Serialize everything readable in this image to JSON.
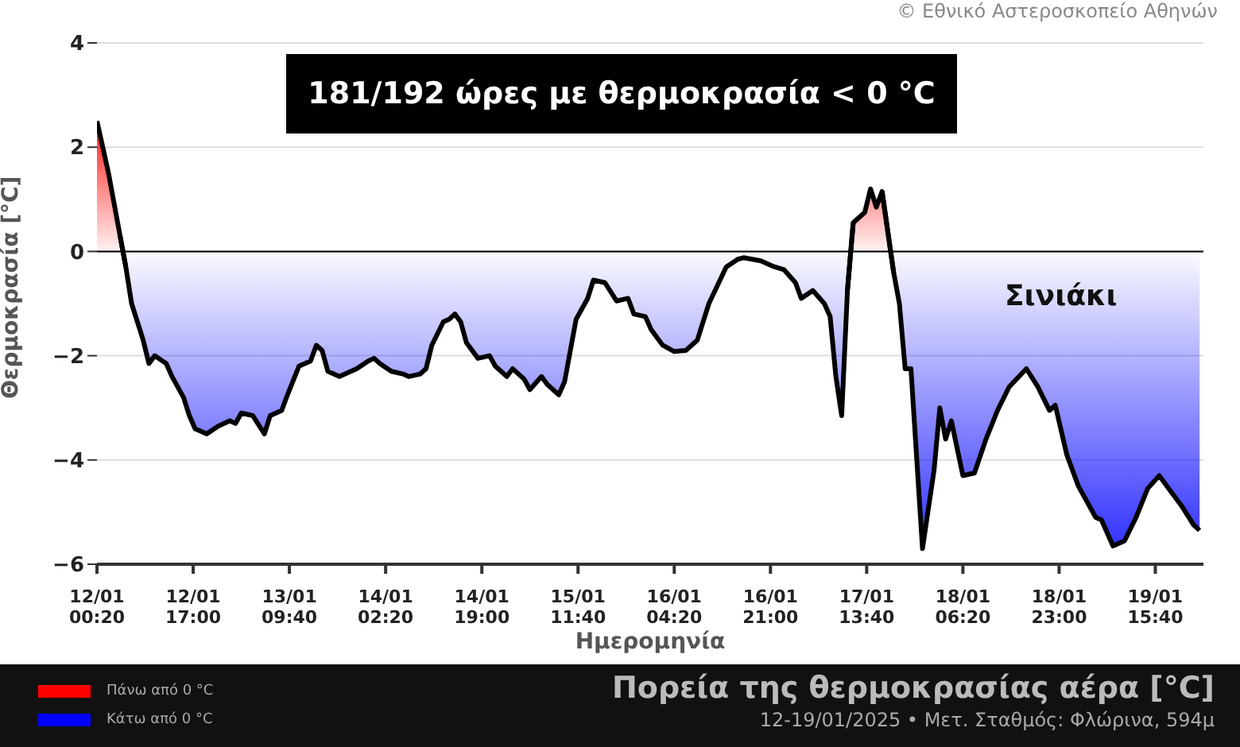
{
  "chart_data": {
    "type": "area",
    "title": "Πορεία της θερμοκρασίας αέρα [°C]",
    "subtitle": "12-19/01/2025 • Μετ. Σταθμός: Φλώρινα, 594μ",
    "xlabel": "Ημερομηνία",
    "ylabel": "Θερμοκρασία [°C]",
    "annotations": [
      "181/192 ώρες με θερμοκρασία < 0 °C",
      "Σινιάκι",
      "© Εθνικό Αστεροσκοπείο Αθηνών"
    ],
    "x": [
      "2025-01-12T00:20",
      "2025-01-12T02:20",
      "2025-01-12T04:20",
      "2025-01-12T05:20",
      "2025-01-12T06:20",
      "2025-01-12T08:20",
      "2025-01-12T09:20",
      "2025-01-12T10:20",
      "2025-01-12T12:20",
      "2025-01-12T13:20",
      "2025-01-12T15:20",
      "2025-01-12T16:20",
      "2025-01-12T17:20",
      "2025-01-12T19:20",
      "2025-01-12T21:20",
      "2025-01-12T23:20",
      "2025-01-13T00:20",
      "2025-01-13T01:20",
      "2025-01-13T03:20",
      "2025-01-13T05:20",
      "2025-01-13T06:20",
      "2025-01-13T08:20",
      "2025-01-13T09:20",
      "2025-01-13T11:20",
      "2025-01-13T13:20",
      "2025-01-13T14:20",
      "2025-01-13T15:20",
      "2025-01-13T16:20",
      "2025-01-13T18:20",
      "2025-01-13T21:20",
      "2025-01-13T23:20",
      "2025-01-14T00:20",
      "2025-01-14T01:20",
      "2025-01-14T03:20",
      "2025-01-14T05:20",
      "2025-01-14T06:20",
      "2025-01-14T08:20",
      "2025-01-14T09:20",
      "2025-01-14T10:20",
      "2025-01-14T12:20",
      "2025-01-14T13:20",
      "2025-01-14T14:20",
      "2025-01-14T15:20",
      "2025-01-14T16:20",
      "2025-01-14T18:20",
      "2025-01-14T20:20",
      "2025-01-14T21:20",
      "2025-01-14T23:20",
      "2025-01-15T00:20",
      "2025-01-15T02:20",
      "2025-01-15T03:20",
      "2025-01-15T05:20",
      "2025-01-15T06:20",
      "2025-01-15T08:20",
      "2025-01-15T09:20",
      "2025-01-15T10:20",
      "2025-01-15T11:20",
      "2025-01-15T13:20",
      "2025-01-15T14:20",
      "2025-01-15T16:20",
      "2025-01-15T18:20",
      "2025-01-15T20:20",
      "2025-01-15T21:20",
      "2025-01-15T23:20",
      "2025-01-16T00:20",
      "2025-01-16T02:20",
      "2025-01-16T04:20",
      "2025-01-16T06:20",
      "2025-01-16T08:20",
      "2025-01-16T10:20",
      "2025-01-16T13:20",
      "2025-01-16T15:20",
      "2025-01-16T16:20",
      "2025-01-16T19:20",
      "2025-01-16T21:20",
      "2025-01-16T23:20",
      "2025-01-17T01:20",
      "2025-01-17T02:20",
      "2025-01-17T04:20",
      "2025-01-17T06:20",
      "2025-01-17T07:20",
      "2025-01-17T08:20",
      "2025-01-17T09:20",
      "2025-01-17T10:20",
      "2025-01-17T11:20",
      "2025-01-17T13:20",
      "2025-01-17T14:20",
      "2025-01-17T15:20",
      "2025-01-17T16:20",
      "2025-01-17T18:20",
      "2025-01-17T19:20",
      "2025-01-17T20:20",
      "2025-01-17T21:20",
      "2025-01-17T23:20",
      "2025-01-18T01:20",
      "2025-01-18T02:20",
      "2025-01-18T03:20",
      "2025-01-18T04:20",
      "2025-01-18T06:20",
      "2025-01-18T08:20",
      "2025-01-18T10:20",
      "2025-01-18T12:20",
      "2025-01-18T14:20",
      "2025-01-18T17:20",
      "2025-01-18T19:20",
      "2025-01-18T21:20",
      "2025-01-18T22:20",
      "2025-01-19T00:20",
      "2025-01-19T02:20",
      "2025-01-19T05:20",
      "2025-01-19T06:20",
      "2025-01-19T08:20",
      "2025-01-19T10:20",
      "2025-01-19T12:20",
      "2025-01-19T14:20",
      "2025-01-19T16:20",
      "2025-01-19T18:20",
      "2025-01-19T20:20",
      "2025-01-19T22:20",
      "2025-01-19T23:20"
    ],
    "series": [
      {
        "name": "Πάνω από 0 °C",
        "color": "#ff0000",
        "values": [
          2.5,
          1.5,
          0.3,
          -0.3,
          null,
          null,
          null,
          null,
          null,
          null,
          null,
          null,
          null,
          null,
          null,
          null,
          null,
          null,
          null,
          null,
          null,
          null,
          null,
          null,
          null,
          null,
          null,
          null,
          null,
          null,
          null,
          null,
          null,
          null,
          null,
          null,
          null,
          null,
          null,
          null,
          null,
          null,
          null,
          null,
          null,
          null,
          null,
          null,
          null,
          null,
          null,
          null,
          null,
          null,
          null,
          null,
          null,
          null,
          null,
          null,
          null,
          null,
          null,
          null,
          null,
          null,
          null,
          null,
          null,
          null,
          null,
          null,
          null,
          null,
          null,
          null,
          null,
          null,
          null,
          null,
          null,
          null,
          null,
          -0.75,
          0.55,
          0.75,
          1.2,
          0.85,
          1.15,
          -0.4,
          null,
          null,
          null,
          null,
          null,
          null,
          null,
          null,
          null,
          null,
          null,
          null,
          null,
          null,
          null,
          null,
          null,
          null,
          null,
          null,
          null,
          null,
          null,
          null,
          null,
          null,
          null,
          null,
          null,
          null
        ]
      },
      {
        "name": "Κάτω από 0 °C",
        "color": "#0000ff",
        "values": [
          null,
          null,
          0.3,
          -0.3,
          -1.0,
          -1.7,
          -2.15,
          -2.0,
          -2.15,
          -2.4,
          -2.8,
          -3.15,
          -3.4,
          -3.5,
          -3.35,
          -3.25,
          -3.3,
          -3.1,
          -3.15,
          -3.5,
          -3.15,
          -3.05,
          -2.75,
          -2.2,
          -2.1,
          -1.8,
          -1.9,
          -2.3,
          -2.4,
          -2.25,
          -2.1,
          -2.05,
          -2.15,
          -2.3,
          -2.35,
          -2.4,
          -2.35,
          -2.25,
          -1.8,
          -1.35,
          -1.3,
          -1.2,
          -1.35,
          -1.75,
          -2.05,
          -2.0,
          -2.2,
          -2.4,
          -2.25,
          -2.45,
          -2.65,
          -2.4,
          -2.55,
          -2.75,
          -2.5,
          -1.9,
          -1.3,
          -0.9,
          -0.55,
          -0.6,
          -0.95,
          -0.9,
          -1.2,
          -1.25,
          -1.5,
          -1.8,
          -1.92,
          -1.9,
          -1.7,
          -1.0,
          -0.3,
          -0.15,
          -0.12,
          -0.18,
          -0.28,
          -0.35,
          -0.6,
          -0.9,
          -0.75,
          -1.0,
          -1.25,
          -2.4,
          -3.15,
          -0.75,
          0.55,
          null,
          null,
          null,
          1.15,
          -0.4,
          -1.0,
          -2.25,
          -2.25,
          -5.7,
          -4.2,
          -3.0,
          -3.6,
          -3.25,
          -4.3,
          -4.25,
          -3.6,
          -3.05,
          -2.6,
          -2.25,
          -2.6,
          -3.05,
          -2.95,
          -3.9,
          -4.5,
          -5.1,
          -5.15,
          -5.65,
          -5.55,
          -5.1,
          -4.55,
          -4.3,
          -4.6,
          -4.9,
          -5.25,
          -5.35
        ]
      }
    ],
    "xlim": [
      "2025-01-12T00:20",
      "2025-01-20T00:00"
    ],
    "xticks": [
      {
        "value": "2025-01-12T00:20",
        "label": "12/01\n00:20"
      },
      {
        "value": "2025-01-12T17:00",
        "label": "12/01\n17:00"
      },
      {
        "value": "2025-01-13T09:40",
        "label": "13/01\n09:40"
      },
      {
        "value": "2025-01-14T02:20",
        "label": "14/01\n02:20"
      },
      {
        "value": "2025-01-14T19:00",
        "label": "14/01\n19:00"
      },
      {
        "value": "2025-01-15T11:40",
        "label": "15/01\n11:40"
      },
      {
        "value": "2025-01-16T04:20",
        "label": "16/01\n04:20"
      },
      {
        "value": "2025-01-16T21:00",
        "label": "16/01\n21:00"
      },
      {
        "value": "2025-01-17T13:40",
        "label": "17/01\n13:40"
      },
      {
        "value": "2025-01-18T06:20",
        "label": "18/01\n06:20"
      },
      {
        "value": "2025-01-18T23:00",
        "label": "18/01\n23:00"
      },
      {
        "value": "2025-01-19T15:40",
        "label": "19/01\n15:40"
      }
    ],
    "ylim": [
      -6,
      4
    ],
    "yticks": [
      -6,
      -4,
      -2,
      0,
      2,
      4
    ],
    "ref_lines": [
      {
        "axis": "y",
        "value": 0,
        "color": "#000000"
      }
    ],
    "grid": "y",
    "legend": "bottom left"
  }
}
